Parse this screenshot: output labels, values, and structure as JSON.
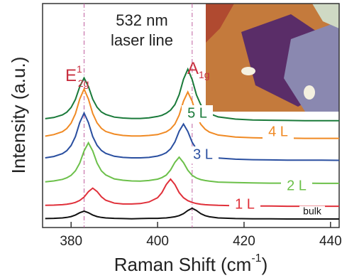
{
  "chart_data": {
    "type": "line",
    "xlabel": {
      "text": "Raman Shift (cm",
      "sup": "-1",
      "end": ")"
    },
    "ylabel": "Intensity (a.u.)",
    "annotations": [
      "532 nm",
      "laser line"
    ],
    "peak_labels": [
      {
        "base": "E",
        "sup": "1",
        "sub": "2g",
        "color": "#c83040"
      },
      {
        "base": "A",
        "sub": "1g",
        "color": "#c83040"
      }
    ],
    "reference_lines": [
      383,
      408
    ],
    "reference_line_color": "#c060a0",
    "xlim": [
      373.4,
      442
    ],
    "ylim": [
      0,
      100
    ],
    "xticks": [
      380,
      400,
      420,
      440
    ],
    "x": [
      374,
      376,
      378,
      379,
      380,
      381,
      382,
      383,
      384,
      385,
      386,
      387,
      388,
      390,
      392,
      394,
      396,
      398,
      400,
      401,
      402,
      403,
      404,
      405,
      406,
      407,
      408,
      409,
      410,
      411,
      412,
      414,
      418,
      422,
      426,
      430,
      434,
      438,
      442
    ],
    "series": [
      {
        "name": "5 L",
        "color": "#1a7a3a",
        "values": [
          48.6,
          49.1,
          50.3,
          51.5,
          53.6,
          57.2,
          62.9,
          66.8,
          63.0,
          57.3,
          53.7,
          51.6,
          50.5,
          49.3,
          48.9,
          48.7,
          48.7,
          49.0,
          49.6,
          50.1,
          51.0,
          52.4,
          54.9,
          59.3,
          66.2,
          70.7,
          66.1,
          59.2,
          54.8,
          52.3,
          50.9,
          49.4,
          48.4,
          48.0,
          47.9,
          47.8,
          47.7,
          47.7,
          47.7
        ]
      },
      {
        "name": "4 L",
        "color": "#f08a24",
        "values": [
          40.8,
          41.5,
          42.8,
          44.2,
          46.6,
          50.8,
          57.4,
          61.8,
          57.4,
          50.9,
          46.7,
          44.3,
          42.9,
          41.7,
          41.1,
          40.9,
          40.9,
          41.1,
          41.5,
          42.1,
          42.7,
          44.0,
          46.2,
          50.2,
          56.4,
          60.5,
          56.4,
          50.1,
          46.1,
          43.9,
          42.6,
          41.3,
          40.4,
          40.1,
          39.9,
          39.9,
          39.8,
          39.8,
          39.8
        ]
      },
      {
        "name": "3 L",
        "color": "#2a4fa0",
        "values": [
          31.1,
          31.7,
          33.0,
          34.3,
          36.6,
          40.6,
          46.9,
          51.1,
          46.9,
          40.6,
          36.7,
          34.4,
          33.1,
          31.8,
          31.3,
          31.1,
          31.1,
          31.3,
          31.9,
          32.5,
          33.4,
          35.1,
          38.2,
          43.0,
          46.2,
          42.9,
          38.1,
          35.0,
          33.3,
          32.3,
          31.7,
          31.0,
          30.5,
          30.3,
          30.2,
          30.1,
          30.1,
          30.1,
          30.0
        ]
      },
      {
        "name": "2 L",
        "color": "#6cc04a",
        "values": [
          20.4,
          20.8,
          21.5,
          22.2,
          23.3,
          25.3,
          28.8,
          34.2,
          37.8,
          34.2,
          28.8,
          25.3,
          23.5,
          21.7,
          21.1,
          20.8,
          20.7,
          21.0,
          21.6,
          22.3,
          23.4,
          25.7,
          29.1,
          31.4,
          29.0,
          25.6,
          23.3,
          22.1,
          21.4,
          21.0,
          20.7,
          20.3,
          20.1,
          19.9,
          19.8,
          19.8,
          19.8,
          19.7,
          19.7
        ]
      },
      {
        "name": "1 L",
        "color": "#e0303a",
        "values": [
          9.9,
          10.0,
          10.2,
          10.4,
          10.7,
          11.2,
          12.1,
          13.6,
          16.0,
          17.6,
          16.1,
          13.7,
          12.2,
          10.9,
          10.5,
          10.5,
          10.7,
          11.4,
          13.3,
          15.6,
          19.2,
          21.6,
          19.2,
          15.6,
          13.3,
          12.0,
          11.2,
          10.7,
          10.4,
          10.2,
          10.1,
          9.9,
          9.7,
          9.6,
          9.6,
          9.5,
          9.5,
          9.5,
          9.5
        ]
      },
      {
        "name": "bulk",
        "color": "#111111",
        "values": [
          4.0,
          4.1,
          4.3,
          4.5,
          4.9,
          5.6,
          6.6,
          7.3,
          6.6,
          5.6,
          4.9,
          4.5,
          4.3,
          4.1,
          4.0,
          3.9,
          4.0,
          4.1,
          4.1,
          4.2,
          4.3,
          4.5,
          4.8,
          5.3,
          6.2,
          7.6,
          8.6,
          7.6,
          6.2,
          5.3,
          4.8,
          4.3,
          4.0,
          3.9,
          3.9,
          3.8,
          3.8,
          3.8,
          3.8
        ]
      }
    ]
  }
}
